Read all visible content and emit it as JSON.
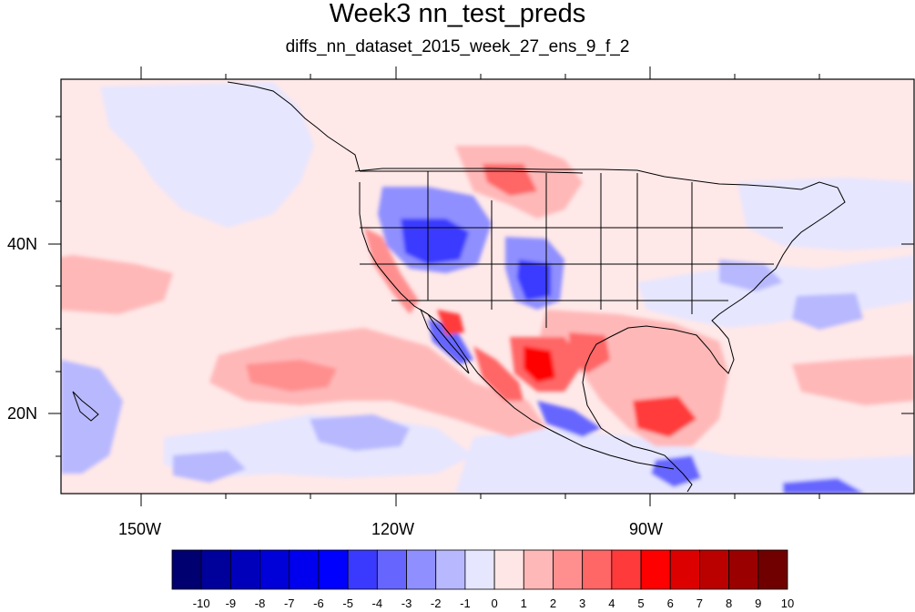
{
  "title": "Week3 nn_test_preds",
  "subtitle": "diffs_nn_dataset_2015_week_27_ens_9_f_2",
  "map": {
    "lon_range": [
      "160W",
      "62W"
    ],
    "lat_range": [
      "10N",
      "59N"
    ],
    "y_axis_labels": [
      "40N",
      "20N"
    ],
    "x_axis_labels": [
      "150W",
      "120W",
      "90W"
    ],
    "background_fill": "#ffe8e8"
  },
  "colorbar": {
    "ticks": [
      "-10",
      "-9",
      "-8",
      "-7",
      "-6",
      "-5",
      "-4",
      "-3",
      "-2",
      "-1",
      "0",
      "1",
      "2",
      "3",
      "4",
      "5",
      "6",
      "7",
      "8",
      "9",
      "10"
    ],
    "colors": [
      "#000070",
      "#00009a",
      "#0000bb",
      "#0000d8",
      "#0000ee",
      "#0000ff",
      "#3a3aff",
      "#6666ff",
      "#8f8fff",
      "#b8b8ff",
      "#e6e6ff",
      "#ffe6e6",
      "#ffb8b8",
      "#ff8f8f",
      "#ff6666",
      "#ff3a3a",
      "#ff0000",
      "#dd0000",
      "#bb0000",
      "#9a0000",
      "#700000"
    ]
  }
}
